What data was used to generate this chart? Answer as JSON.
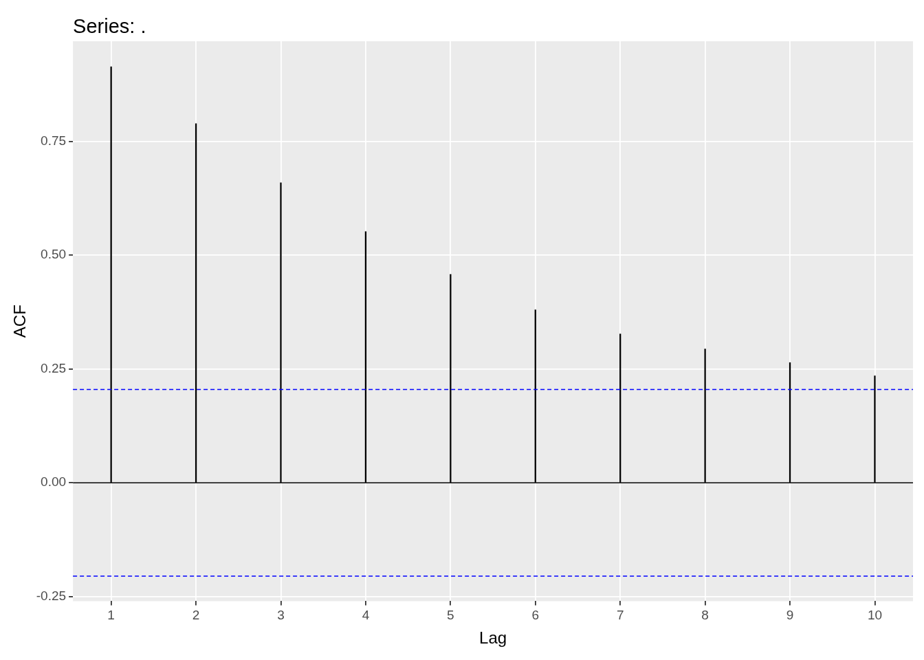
{
  "chart_data": {
    "type": "bar",
    "title": "Series: .",
    "xlabel": "Lag",
    "ylabel": "ACF",
    "x": [
      1,
      2,
      3,
      4,
      5,
      6,
      7,
      8,
      9,
      10
    ],
    "values": [
      0.914,
      0.789,
      0.659,
      0.552,
      0.458,
      0.38,
      0.327,
      0.294,
      0.264,
      0.235
    ],
    "color": "#000000",
    "xlim": [
      0.55,
      10.45
    ],
    "xticks": [
      1,
      2,
      3,
      4,
      5,
      6,
      7,
      8,
      9,
      10
    ],
    "ylim": [
      -0.26,
      0.97
    ],
    "yticks": [
      {
        "value": -0.25,
        "label": "-0.25"
      },
      {
        "value": 0,
        "label": "0.00"
      },
      {
        "value": 0.25,
        "label": "0.25"
      },
      {
        "value": 0.5,
        "label": "0.50"
      },
      {
        "value": 0.75,
        "label": "0.75"
      }
    ],
    "ref_lines": [
      {
        "axis": "y",
        "value": 0,
        "color": "#000000",
        "line_style": "solid"
      },
      {
        "axis": "y",
        "value": 0.205,
        "color": "#0000ff",
        "line_style": "dashed"
      },
      {
        "axis": "y",
        "value": -0.205,
        "color": "#0000ff",
        "line_style": "dashed"
      }
    ],
    "grid": true,
    "legend": false
  }
}
